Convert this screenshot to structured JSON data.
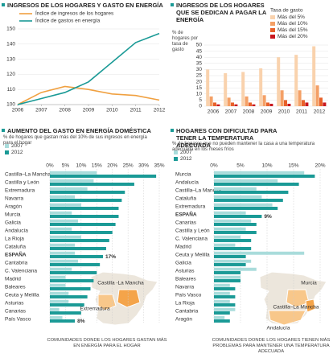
{
  "chart_data": [
    {
      "type": "line",
      "title": "INGRESOS DE LOS HOGARES Y GASTO EN ENERGÍA",
      "x": [
        2006,
        2007,
        2008,
        2009,
        2010,
        2011,
        2012
      ],
      "xlim": [
        2006,
        2012
      ],
      "xticks": [
        2006,
        2007,
        2008,
        2009,
        2010,
        2011,
        2012
      ],
      "ylim": [
        100,
        150
      ],
      "yticks": [
        100,
        110,
        120,
        130,
        140,
        150
      ],
      "grid": true,
      "series": [
        {
          "name": "Índice de ingresos de los hogares",
          "color": "#f0a040",
          "values": [
            100,
            108,
            112,
            110,
            107,
            106,
            103
          ]
        },
        {
          "name": "Índice de gastos en energía",
          "color": "#1a9a96",
          "values": [
            100,
            104,
            108,
            115,
            128,
            141,
            147
          ]
        }
      ]
    },
    {
      "type": "bar",
      "title": "INGRESOS DE LOS HOGARES QUE SE DEDICAN A PAGAR LA ENERGÍA",
      "y_label": "% de hogares por tasa de gasto",
      "legend_title": "Tasa de gasto",
      "categories": [
        "2006",
        "2007",
        "2008",
        "2009",
        "2010",
        "2011",
        "2012"
      ],
      "ylim": [
        0,
        50
      ],
      "yticks": [
        0,
        5,
        10,
        15,
        20,
        25,
        30,
        35,
        40,
        45,
        50
      ],
      "grid": true,
      "series": [
        {
          "name": "Más del 5%",
          "color": "#f9d2ad",
          "values": [
            30,
            27,
            28,
            31,
            40,
            42,
            49
          ]
        },
        {
          "name": "Más del 10%",
          "color": "#f4a066",
          "values": [
            8,
            7,
            8,
            9,
            13,
            13,
            17
          ]
        },
        {
          "name": "Más del 15%",
          "color": "#e8612a",
          "values": [
            3,
            3,
            3,
            3,
            5,
            5,
            7
          ]
        },
        {
          "name": "Más del 20%",
          "color": "#c8161d",
          "values": [
            1.5,
            1.5,
            1.5,
            2,
            2,
            3,
            3
          ]
        }
      ]
    },
    {
      "type": "barh",
      "title": "AUMENTO DEL GASTO EN ENERGÍA DOMÉSTICA",
      "subtitle": "% de hogares que gastan más del 10% de sus ingresos en energía para el hogar",
      "categories": [
        "Castilla–La Mancha",
        "Castilla y León",
        "Extremadura",
        "Navarra",
        "Aragón",
        "Murcia",
        "Galicia",
        "Andalucía",
        "La Rioja",
        "Cataluña",
        "ESPAÑA",
        "Cantabria",
        "C. Valenciana",
        "Madrid",
        "Baleares",
        "Ceuta  y Melilla",
        "Asturias",
        "Canarias",
        "País Vasco"
      ],
      "xlim": [
        0,
        35
      ],
      "xticks": [
        {
          "value": 0,
          "label": "0%"
        },
        {
          "value": 5,
          "label": "5%"
        },
        {
          "value": 10,
          "label": "10%"
        },
        {
          "value": 15,
          "label": "15%"
        },
        {
          "value": 20,
          "label": "20%"
        },
        {
          "value": 25,
          "label": "25%"
        },
        {
          "value": 30,
          "label": "30%"
        },
        {
          "value": 35,
          "label": "35%"
        }
      ],
      "series": [
        {
          "name": "2007",
          "color": "#a9dcdb",
          "values": [
            15,
            14,
            12,
            8,
            10,
            7,
            9,
            7,
            10,
            8,
            8,
            9,
            7,
            5,
            5,
            6,
            6,
            3,
            4
          ]
        },
        {
          "name": "2012",
          "color": "#1a9a96",
          "values": [
            34,
            27,
            24,
            23,
            22,
            22,
            21,
            20,
            19,
            18,
            17,
            16,
            15,
            14,
            13,
            12,
            11,
            10,
            8
          ],
          "value_labels": [
            null,
            null,
            null,
            null,
            null,
            null,
            null,
            null,
            null,
            null,
            "17%",
            null,
            null,
            null,
            null,
            null,
            null,
            null,
            "8%"
          ]
        }
      ],
      "map_labels": [
        "Castilla -La Mancha",
        "Extremadura"
      ],
      "footer": "COMUNIDADES  DONDE LOS HOGARES GASTAN MÁS EN ENERGÍA PARA EL HOGAR"
    },
    {
      "type": "barh",
      "title": "HOGARES CON DIFICULTAD PARA TENER LA TEMPERATURA ADECUADA",
      "subtitle": "% de hogares que no pueden mantener la casa a una temperatura adecuada en los meses fríos",
      "categories": [
        "Murcia",
        "Andalucía",
        "Castilla–La Mancha",
        "Cataluña",
        "Extremadura",
        "ESPAÑA",
        "Canarias",
        "Castilla y León",
        "C. Valenciana",
        "Madrid",
        "Ceuta  y Melilla",
        "Galicia",
        "Asturias",
        "Baleares",
        "Navarra",
        "País Vasco",
        "La Rioja",
        "Cantabria",
        "Aragón"
      ],
      "xlim": [
        0,
        20
      ],
      "xticks": [
        {
          "value": 0,
          "label": "0%"
        },
        {
          "value": 5,
          "label": "5%"
        },
        {
          "value": 10,
          "label": "10%"
        },
        {
          "value": 15,
          "label": "15%"
        },
        {
          "value": 20,
          "label": "20%"
        }
      ],
      "series": [
        {
          "name": "2007",
          "color": "#a9dcdb",
          "values": [
            17,
            12,
            8,
            9,
            11,
            6,
            7,
            6,
            5,
            4,
            17,
            7,
            8,
            5,
            3,
            3,
            3,
            4,
            2
          ]
        },
        {
          "name": "2012",
          "color": "#1a9a96",
          "values": [
            19,
            16,
            14,
            13,
            12,
            9,
            8,
            8,
            7,
            7,
            6,
            6,
            5,
            5,
            4,
            4,
            4,
            3,
            3
          ],
          "value_labels": [
            null,
            null,
            null,
            null,
            null,
            "9%",
            null,
            null,
            null,
            null,
            null,
            null,
            null,
            null,
            null,
            null,
            null,
            null,
            null
          ]
        }
      ],
      "map_labels": [
        "Murcia",
        "Castilla–La Mancha",
        "Andalucía"
      ],
      "footer": "COMUNIDADES  DONDE LOS HOGARES TIENEN MÁS PROBLEMAS PARA MANTENER UNA TEMPERATURA ADECUADA"
    }
  ]
}
